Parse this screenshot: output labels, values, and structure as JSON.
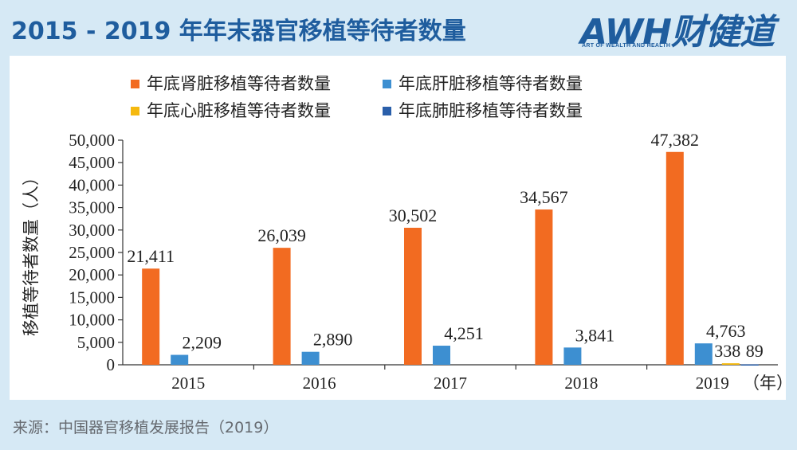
{
  "header": {
    "title": "2015 - 2019 年年末器官移植等待者数量"
  },
  "logo": {
    "main": "AWH财健道",
    "sub": "ART OF WEALTH AND HEALTH",
    "accent_color": "#f08a1c"
  },
  "footer": {
    "source": "来源：中国器官移植发展报告（2019）"
  },
  "colors": {
    "background": "#d6e9f5",
    "title": "#1f5d9e",
    "panel": "#ffffff"
  },
  "chart_data": {
    "type": "bar",
    "categories": [
      "2015",
      "2016",
      "2017",
      "2018",
      "2019"
    ],
    "xunit": "（年）",
    "ylabel": "移植等待者数量（人）",
    "ylim": [
      0,
      50000
    ],
    "yticks": [
      "0",
      "5,000",
      "10,000",
      "15,000",
      "20,000",
      "25,000",
      "30,000",
      "35,000",
      "40,000",
      "45,000",
      "50,000"
    ],
    "legend_position": "top",
    "series": [
      {
        "name": "年底肾脏移植等待者数量",
        "color": "#f26b21",
        "values": [
          21411,
          26039,
          30502,
          34567,
          47382
        ],
        "labels": [
          "21,411",
          "26,039",
          "30,502",
          "34,567",
          "47,382"
        ]
      },
      {
        "name": "年底肝脏移植等待者数量",
        "color": "#3d8fd1",
        "values": [
          2209,
          2890,
          4251,
          3841,
          4763
        ],
        "labels": [
          "2,209",
          "2,890",
          "4,251",
          "3,841",
          "4,763"
        ]
      },
      {
        "name": "年底心脏移植等待者数量",
        "color": "#f5b90f",
        "values": [
          null,
          null,
          null,
          null,
          338
        ],
        "labels": [
          "",
          "",
          "",
          "",
          "338"
        ]
      },
      {
        "name": "年底肺脏移植等待者数量",
        "color": "#2a5faa",
        "values": [
          null,
          null,
          null,
          null,
          89
        ],
        "labels": [
          "",
          "",
          "",
          "",
          "89"
        ]
      }
    ]
  }
}
